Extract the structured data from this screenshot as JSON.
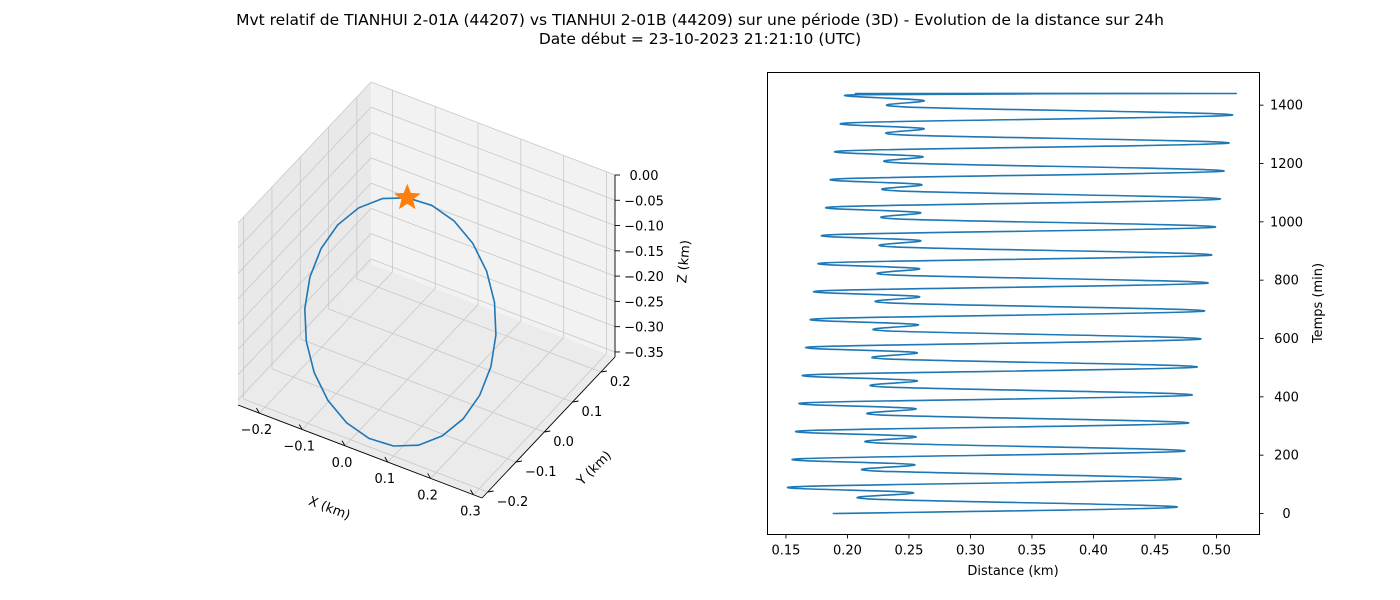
{
  "title": "Mvt relatif de TIANHUI 2-01A (44207) vs TIANHUI 2-01B (44209) sur une période (3D) - Evolution de la distance sur 24h",
  "subtitle": "Date début = 23-10-2023 21:21:10 (UTC)",
  "colors": {
    "series": "#1f77b4",
    "marker": "#ff7f0e",
    "pane_back": "#f2f2f2",
    "pane_side": "#e9e9e9",
    "pane_floor": "#ebebeb",
    "grid": "#c8c8c8"
  },
  "chart_data": [
    {
      "type": "line3d",
      "xlabel": "X (km)",
      "ylabel": "Y (km)",
      "zlabel": "Z (km)",
      "xlim": [
        -0.25,
        0.32
      ],
      "ylim": [
        -0.22,
        0.25
      ],
      "zlim": [
        -0.36,
        0.0
      ],
      "xticks": [
        -0.2,
        -0.1,
        0.0,
        0.1,
        0.2,
        0.3
      ],
      "yticks": [
        -0.2,
        -0.1,
        0.0,
        0.1,
        0.2
      ],
      "zticks": [
        0.0,
        -0.05,
        -0.1,
        -0.15,
        -0.2,
        -0.25,
        -0.3,
        -0.35
      ],
      "xtick_labels": [
        "−0.2",
        "−0.1",
        "0.0",
        "0.1",
        "0.2",
        "0.3"
      ],
      "ytick_labels": [
        "−0.2",
        "−0.1",
        "0.0",
        "0.1",
        "0.2"
      ],
      "ztick_labels": [
        "0.00",
        "−0.05",
        "−0.10",
        "−0.15",
        "−0.20",
        "−0.25",
        "−0.30",
        "−0.35"
      ],
      "marker": {
        "shape": "star",
        "x": 0.0,
        "y": 0.0,
        "z": 0.0
      },
      "grid": true
    },
    {
      "type": "line",
      "xlabel": "Distance (km)",
      "ylabel": "Temps (min)",
      "xlim": [
        0.135,
        0.535
      ],
      "ylim": [
        -72,
        1512
      ],
      "xticks": [
        0.15,
        0.2,
        0.25,
        0.3,
        0.35,
        0.4,
        0.45,
        0.5
      ],
      "yticks": [
        0,
        200,
        400,
        600,
        800,
        1000,
        1200,
        1400
      ],
      "xtick_labels": [
        "0.15",
        "0.20",
        "0.25",
        "0.30",
        "0.35",
        "0.40",
        "0.45",
        "0.50"
      ],
      "ytick_labels": [
        "0",
        "200",
        "400",
        "600",
        "800",
        "1000",
        "1200",
        "1400"
      ],
      "y_axis_side": "right",
      "grid": false,
      "series": [
        {
          "x": [
            0.188,
            0.468,
            0.217,
            0.253,
            0.158,
            0.471,
            0.221,
            0.254,
            0.162,
            0.474,
            0.224,
            0.255,
            0.165,
            0.477,
            0.226,
            0.255,
            0.168,
            0.48,
            0.229,
            0.256,
            0.171,
            0.484,
            0.231,
            0.256,
            0.174,
            0.487,
            0.232,
            0.257,
            0.178,
            0.49,
            0.234,
            0.258,
            0.181,
            0.493,
            0.236,
            0.258,
            0.185,
            0.496,
            0.238,
            0.259,
            0.188,
            0.499,
            0.24,
            0.259,
            0.192,
            0.503,
            0.241,
            0.26,
            0.196,
            0.506,
            0.243,
            0.261,
            0.2,
            0.51,
            0.245,
            0.262,
            0.205,
            0.513,
            0.246,
            0.262,
            0.209,
            0.516,
            0.248,
            0.262,
            0.211,
            0.395
          ],
          "y": [
            0,
            22,
            50,
            72,
            92,
            118,
            146,
            168,
            188,
            214,
            242,
            264,
            284,
            310,
            338,
            360,
            380,
            406,
            434,
            456,
            476,
            502,
            530,
            552,
            572,
            598,
            626,
            648,
            668,
            694,
            722,
            744,
            764,
            790,
            818,
            840,
            860,
            886,
            914,
            936,
            956,
            982,
            1010,
            1032,
            1052,
            1078,
            1106,
            1128,
            1148,
            1174,
            1202,
            1224,
            1244,
            1270,
            1298,
            1320,
            1340,
            1366,
            1394,
            1416,
            1436,
            1440,
            1440,
            1440,
            1440,
            1440
          ]
        }
      ]
    }
  ]
}
